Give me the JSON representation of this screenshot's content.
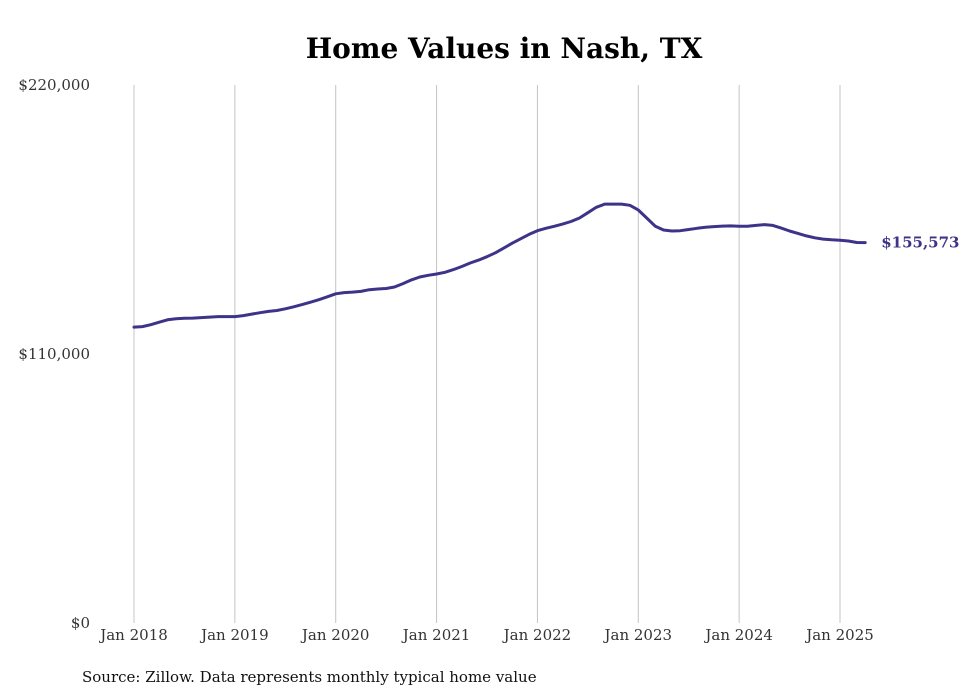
{
  "chart_data": {
    "type": "line",
    "title": "Home Values in Nash, TX",
    "xlabel": "",
    "ylabel": "",
    "ylim": [
      0,
      220000
    ],
    "y_ticks": [
      {
        "value": 0,
        "label": "$0"
      },
      {
        "value": 110000,
        "label": "$110,000"
      },
      {
        "value": 220000,
        "label": "$220,000"
      }
    ],
    "x_ticks": [
      {
        "date": "2018-01",
        "label": "Jan 2018"
      },
      {
        "date": "2019-01",
        "label": "Jan 2019"
      },
      {
        "date": "2020-01",
        "label": "Jan 2020"
      },
      {
        "date": "2021-01",
        "label": "Jan 2021"
      },
      {
        "date": "2022-01",
        "label": "Jan 2022"
      },
      {
        "date": "2023-01",
        "label": "Jan 2023"
      },
      {
        "date": "2024-01",
        "label": "Jan 2024"
      },
      {
        "date": "2025-01",
        "label": "Jan 2025"
      }
    ],
    "grid": "vertical",
    "line_color": "#3d3389",
    "series": [
      {
        "points": [
          [
            "2018-01",
            121000
          ],
          [
            "2018-02",
            121200
          ],
          [
            "2018-03",
            122000
          ],
          [
            "2018-04",
            123000
          ],
          [
            "2018-05",
            124000
          ],
          [
            "2018-06",
            124400
          ],
          [
            "2018-07",
            124600
          ],
          [
            "2018-08",
            124700
          ],
          [
            "2018-09",
            124900
          ],
          [
            "2018-10",
            125100
          ],
          [
            "2018-11",
            125300
          ],
          [
            "2018-12",
            125300
          ],
          [
            "2019-01",
            125300
          ],
          [
            "2019-02",
            125700
          ],
          [
            "2019-03",
            126300
          ],
          [
            "2019-04",
            126900
          ],
          [
            "2019-05",
            127400
          ],
          [
            "2019-06",
            127800
          ],
          [
            "2019-07",
            128500
          ],
          [
            "2019-08",
            129300
          ],
          [
            "2019-09",
            130200
          ],
          [
            "2019-10",
            131200
          ],
          [
            "2019-11",
            132200
          ],
          [
            "2019-12",
            133400
          ],
          [
            "2020-01",
            134600
          ],
          [
            "2020-02",
            135100
          ],
          [
            "2020-03",
            135300
          ],
          [
            "2020-04",
            135600
          ],
          [
            "2020-05",
            136300
          ],
          [
            "2020-06",
            136600
          ],
          [
            "2020-07",
            136800
          ],
          [
            "2020-08",
            137400
          ],
          [
            "2020-09",
            138800
          ],
          [
            "2020-10",
            140300
          ],
          [
            "2020-11",
            141500
          ],
          [
            "2020-12",
            142200
          ],
          [
            "2021-01",
            142700
          ],
          [
            "2021-02",
            143400
          ],
          [
            "2021-03",
            144500
          ],
          [
            "2021-04",
            145800
          ],
          [
            "2021-05",
            147200
          ],
          [
            "2021-06",
            148400
          ],
          [
            "2021-07",
            149800
          ],
          [
            "2021-08",
            151400
          ],
          [
            "2021-09",
            153300
          ],
          [
            "2021-10",
            155300
          ],
          [
            "2021-11",
            157100
          ],
          [
            "2021-12",
            158900
          ],
          [
            "2022-01",
            160400
          ],
          [
            "2022-02",
            161400
          ],
          [
            "2022-03",
            162200
          ],
          [
            "2022-04",
            163100
          ],
          [
            "2022-05",
            164200
          ],
          [
            "2022-06",
            165600
          ],
          [
            "2022-07",
            167800
          ],
          [
            "2022-08",
            170000
          ],
          [
            "2022-09",
            171300
          ],
          [
            "2022-10",
            171300
          ],
          [
            "2022-11",
            171300
          ],
          [
            "2022-12",
            170800
          ],
          [
            "2023-01",
            168900
          ],
          [
            "2023-02",
            165600
          ],
          [
            "2023-03",
            162300
          ],
          [
            "2023-04",
            160700
          ],
          [
            "2023-05",
            160300
          ],
          [
            "2023-06",
            160400
          ],
          [
            "2023-07",
            160900
          ],
          [
            "2023-08",
            161400
          ],
          [
            "2023-09",
            161800
          ],
          [
            "2023-10",
            162100
          ],
          [
            "2023-11",
            162300
          ],
          [
            "2023-12",
            162400
          ],
          [
            "2024-01",
            162200
          ],
          [
            "2024-02",
            162200
          ],
          [
            "2024-03",
            162600
          ],
          [
            "2024-04",
            162900
          ],
          [
            "2024-05",
            162600
          ],
          [
            "2024-06",
            161500
          ],
          [
            "2024-07",
            160300
          ],
          [
            "2024-08",
            159300
          ],
          [
            "2024-09",
            158300
          ],
          [
            "2024-10",
            157500
          ],
          [
            "2024-11",
            157000
          ],
          [
            "2024-12",
            156700
          ],
          [
            "2025-01",
            156500
          ],
          [
            "2025-02",
            156200
          ],
          [
            "2025-03",
            155600
          ],
          [
            "2025-04",
            155573
          ]
        ]
      }
    ],
    "end_label": "$155,573"
  },
  "footer": {
    "source": "Source: Zillow. Data represents monthly typical home value"
  }
}
